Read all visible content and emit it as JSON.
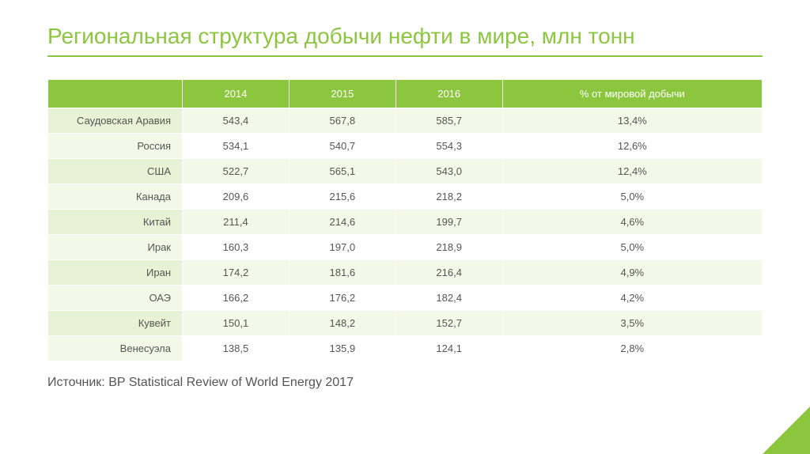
{
  "title": "Региональная структура добычи нефти в мире, млн тонн",
  "source": "Источник: BP Statistical Review of World Energy 2017",
  "table": {
    "type": "table",
    "header_bg": "#8cc63f",
    "header_fg": "#ffffff",
    "band_a_head": "#e8f2d4",
    "band_a_cell": "#f4f8e9",
    "band_b_head": "#f4f8e9",
    "band_b_cell": "#ffffff",
    "text_color": "#555555",
    "font_size": 13,
    "columns": [
      "",
      "2014",
      "2015",
      "2016",
      "% от мировой добычи"
    ],
    "rows": [
      {
        "label": "Саудовская Аравия",
        "cells": [
          "543,4",
          "567,8",
          "585,7",
          "13,4%"
        ]
      },
      {
        "label": "Россия",
        "cells": [
          "534,1",
          "540,7",
          "554,3",
          "12,6%"
        ]
      },
      {
        "label": "США",
        "cells": [
          "522,7",
          "565,1",
          "543,0",
          "12,4%"
        ]
      },
      {
        "label": "Канада",
        "cells": [
          "209,6",
          "215,6",
          "218,2",
          "5,0%"
        ]
      },
      {
        "label": "Китай",
        "cells": [
          "211,4",
          "214,6",
          "199,7",
          "4,6%"
        ]
      },
      {
        "label": "Ирак",
        "cells": [
          "160,3",
          "197,0",
          "218,9",
          "5,0%"
        ]
      },
      {
        "label": "Иран",
        "cells": [
          "174,2",
          "181,6",
          "216,4",
          "4,9%"
        ]
      },
      {
        "label": "ОАЭ",
        "cells": [
          "166,2",
          "176,2",
          "182,4",
          "4,2%"
        ]
      },
      {
        "label": "Кувейт",
        "cells": [
          "150,1",
          "148,2",
          "152,7",
          "3,5%"
        ]
      },
      {
        "label": "Венесуэла",
        "cells": [
          "138,5",
          "135,9",
          "124,1",
          "2,8%"
        ]
      }
    ]
  },
  "accent_color": "#8cc63f"
}
